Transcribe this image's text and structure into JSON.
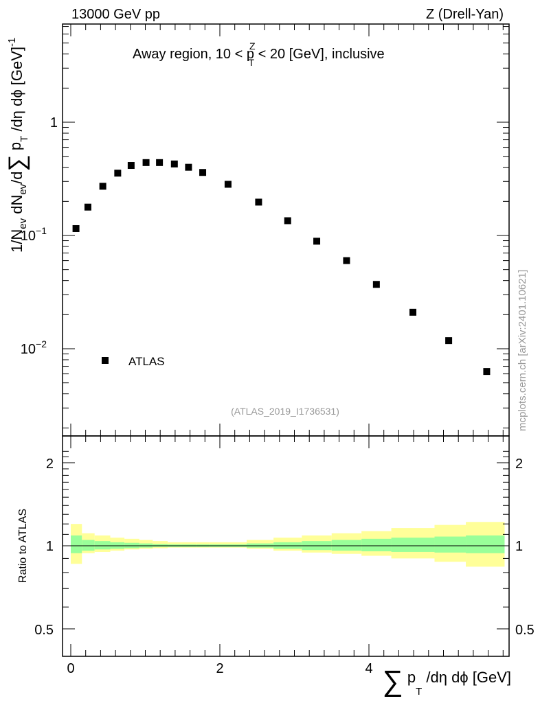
{
  "header": {
    "left_title": "13000 GeV pp",
    "right_title": "Z (Drell-Yan)"
  },
  "main_plot": {
    "title": "Away region, 10 < p",
    "title_sup": "Z",
    "title_sub": "T",
    "title_rest": " < 20 [GeV], inclusive",
    "ylabel_a": "1/N",
    "ylabel_b": "ev",
    "ylabel_c": " dN",
    "ylabel_d": "ev",
    "ylabel_e": "/d",
    "ylabel_f": "∑",
    "ylabel_g": " p",
    "ylabel_h": "T",
    "ylabel_i": " /dη dϕ  [GeV]",
    "ylabel_j": "-1",
    "ytick_1": "1",
    "ytick_01_base": "10",
    "ytick_01_exp": "−1",
    "ytick_001_base": "10",
    "ytick_001_exp": "−2",
    "legend_label": "ATLAS",
    "analysis_id": "(ATLAS_2019_I1736531)",
    "watermark": "mcplots.cern.ch [arXiv:2401.10621]"
  },
  "ratio_plot": {
    "ylabel": "Ratio to ATLAS",
    "ytick_labels": [
      "2",
      "1",
      "0.5"
    ],
    "right_ytick_labels": [
      "2",
      "1",
      "0.5"
    ]
  },
  "xaxis": {
    "tick_labels": [
      "0",
      "2",
      "4"
    ],
    "label_sum": "∑",
    "label_p": " p",
    "label_sub": "T",
    "label_rest": " /dη dϕ [GeV]"
  },
  "colors": {
    "marker": "#000000",
    "band_outer": "#ffff99",
    "band_inner": "#99ff99"
  },
  "chart_data": {
    "type": "scatter",
    "title": "Away region, 10 < pT^Z < 20 [GeV], inclusive",
    "xlabel": "Σ pT /dη dϕ [GeV]",
    "ylabel": "1/Nev dNev/dΣ pT /dη dϕ [GeV]^-1",
    "xlim": [
      -0.15,
      5.9
    ],
    "ylim": [
      0.0017,
      9.0
    ],
    "yscale": "log",
    "series": [
      {
        "name": "ATLAS",
        "x": [
          0.07,
          0.23,
          0.43,
          0.63,
          0.81,
          1.01,
          1.19,
          1.39,
          1.58,
          1.77,
          2.11,
          2.52,
          2.91,
          3.3,
          3.7,
          4.1,
          4.59,
          5.07,
          5.58
        ],
        "y": [
          0.115,
          0.178,
          0.272,
          0.355,
          0.415,
          0.44,
          0.44,
          0.428,
          0.4,
          0.36,
          0.283,
          0.197,
          0.135,
          0.089,
          0.06,
          0.037,
          0.021,
          0.0118,
          0.0063
        ]
      }
    ],
    "ratio": {
      "ylabel": "Ratio to ATLAS",
      "ylim": [
        0.43,
        2.3
      ],
      "edges": [
        0.0,
        0.15,
        0.32,
        0.53,
        0.72,
        0.92,
        1.1,
        1.3,
        1.48,
        1.68,
        1.86,
        2.36,
        2.72,
        3.1,
        3.5,
        3.9,
        4.3,
        4.88,
        5.3,
        5.82
      ],
      "inner_band": [
        [
          0.94,
          1.09
        ],
        [
          0.96,
          1.05
        ],
        [
          0.97,
          1.04
        ],
        [
          0.975,
          1.03
        ],
        [
          0.98,
          1.025
        ],
        [
          0.985,
          1.02
        ],
        [
          0.99,
          1.015
        ],
        [
          0.99,
          1.012
        ],
        [
          0.99,
          1.012
        ],
        [
          0.99,
          1.012
        ],
        [
          0.99,
          1.012
        ],
        [
          0.985,
          1.02
        ],
        [
          0.975,
          1.03
        ],
        [
          0.965,
          1.04
        ],
        [
          0.96,
          1.05
        ],
        [
          0.955,
          1.06
        ],
        [
          0.95,
          1.07
        ],
        [
          0.945,
          1.08
        ],
        [
          0.94,
          1.09
        ]
      ],
      "outer_band": [
        [
          0.86,
          1.2
        ],
        [
          0.94,
          1.11
        ],
        [
          0.95,
          1.09
        ],
        [
          0.96,
          1.07
        ],
        [
          0.97,
          1.06
        ],
        [
          0.975,
          1.05
        ],
        [
          0.98,
          1.04
        ],
        [
          0.985,
          1.03
        ],
        [
          0.985,
          1.03
        ],
        [
          0.985,
          1.03
        ],
        [
          0.985,
          1.03
        ],
        [
          0.975,
          1.05
        ],
        [
          0.96,
          1.07
        ],
        [
          0.945,
          1.09
        ],
        [
          0.935,
          1.11
        ],
        [
          0.92,
          1.13
        ],
        [
          0.9,
          1.16
        ],
        [
          0.875,
          1.19
        ],
        [
          0.84,
          1.22
        ]
      ]
    }
  }
}
